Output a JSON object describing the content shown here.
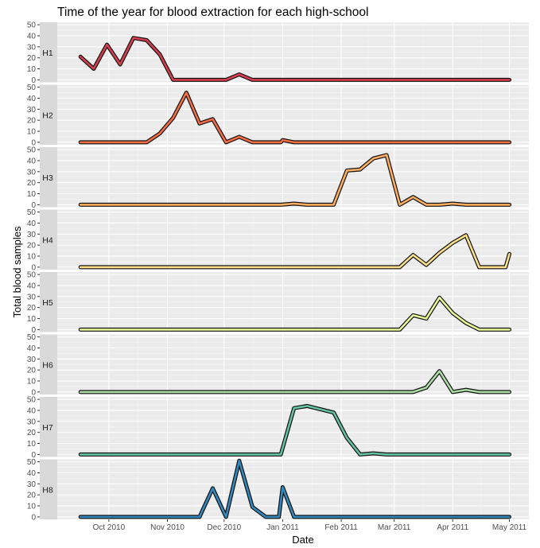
{
  "chart_data": {
    "type": "line",
    "title": "Time of the year for blood extraction for each high-school",
    "xlabel": "Date",
    "ylabel": "Total blood samples",
    "ylim": [
      0,
      50
    ],
    "yticks": [
      0,
      10,
      20,
      30,
      40,
      50
    ],
    "xlim": [
      "2010-09-14",
      "2011-05-01"
    ],
    "xticks": [
      {
        "date": "2010-10-01",
        "label": "Oct 2010"
      },
      {
        "date": "2010-11-01",
        "label": "Nov 2010"
      },
      {
        "date": "2010-12-01",
        "label": "Dec 2010"
      },
      {
        "date": "2011-01-01",
        "label": "Jan 2011"
      },
      {
        "date": "2011-02-01",
        "label": "Feb 2011"
      },
      {
        "date": "2011-03-01",
        "label": "Mar 2011"
      },
      {
        "date": "2011-04-01",
        "label": "Apr 2011"
      },
      {
        "date": "2011-05-01",
        "label": "May 2011"
      }
    ],
    "grid": true,
    "legend": "none",
    "series": [
      {
        "name": "H1",
        "color": "#d53e4f",
        "points": [
          [
            "2010-09-16",
            21
          ],
          [
            "2010-09-23",
            10
          ],
          [
            "2010-09-30",
            32
          ],
          [
            "2010-10-07",
            14
          ],
          [
            "2010-10-14",
            38
          ],
          [
            "2010-10-21",
            36
          ],
          [
            "2010-10-28",
            23
          ],
          [
            "2010-11-04",
            0
          ],
          [
            "2010-11-25",
            0
          ],
          [
            "2010-12-02",
            0
          ],
          [
            "2010-12-09",
            5
          ],
          [
            "2010-12-16",
            0
          ],
          [
            "2011-05-01",
            0
          ]
        ]
      },
      {
        "name": "H2",
        "color": "#f46d43",
        "points": [
          [
            "2010-09-16",
            0
          ],
          [
            "2010-10-21",
            0
          ],
          [
            "2010-10-28",
            8
          ],
          [
            "2010-11-04",
            22
          ],
          [
            "2010-11-11",
            45
          ],
          [
            "2010-11-18",
            17
          ],
          [
            "2010-11-25",
            21
          ],
          [
            "2010-12-02",
            0
          ],
          [
            "2010-12-09",
            5
          ],
          [
            "2010-12-16",
            0
          ],
          [
            "2010-12-31",
            0
          ],
          [
            "2011-01-01",
            2
          ],
          [
            "2011-01-07",
            0
          ],
          [
            "2011-05-01",
            0
          ]
        ]
      },
      {
        "name": "H3",
        "color": "#fdae61",
        "points": [
          [
            "2010-09-16",
            0
          ],
          [
            "2010-12-31",
            0
          ],
          [
            "2011-01-07",
            1
          ],
          [
            "2011-01-14",
            0
          ],
          [
            "2011-01-28",
            0
          ],
          [
            "2011-02-04",
            31
          ],
          [
            "2011-02-11",
            32
          ],
          [
            "2011-02-18",
            42
          ],
          [
            "2011-02-25",
            45
          ],
          [
            "2011-03-04",
            0
          ],
          [
            "2011-03-11",
            7
          ],
          [
            "2011-03-18",
            0
          ],
          [
            "2011-03-25",
            0
          ],
          [
            "2011-04-01",
            1
          ],
          [
            "2011-04-08",
            0
          ],
          [
            "2011-05-01",
            0
          ]
        ]
      },
      {
        "name": "H4",
        "color": "#fee08b",
        "points": [
          [
            "2010-09-16",
            0
          ],
          [
            "2011-03-04",
            0
          ],
          [
            "2011-03-11",
            11
          ],
          [
            "2011-03-18",
            2
          ],
          [
            "2011-03-25",
            13
          ],
          [
            "2011-04-01",
            22
          ],
          [
            "2011-04-08",
            29
          ],
          [
            "2011-04-15",
            0
          ],
          [
            "2011-04-29",
            0
          ],
          [
            "2011-05-01",
            12
          ]
        ]
      },
      {
        "name": "H5",
        "color": "#e6f598",
        "points": [
          [
            "2010-09-16",
            0
          ],
          [
            "2011-03-04",
            0
          ],
          [
            "2011-03-11",
            13
          ],
          [
            "2011-03-18",
            10
          ],
          [
            "2011-03-25",
            29
          ],
          [
            "2011-04-01",
            15
          ],
          [
            "2011-04-08",
            6
          ],
          [
            "2011-04-15",
            0
          ],
          [
            "2011-05-01",
            0
          ]
        ]
      },
      {
        "name": "H6",
        "color": "#abdda4",
        "points": [
          [
            "2010-09-16",
            0
          ],
          [
            "2011-03-11",
            0
          ],
          [
            "2011-03-18",
            4
          ],
          [
            "2011-03-25",
            19
          ],
          [
            "2011-04-01",
            0
          ],
          [
            "2011-04-08",
            2
          ],
          [
            "2011-04-15",
            0
          ],
          [
            "2011-05-01",
            0
          ]
        ]
      },
      {
        "name": "H7",
        "color": "#66c2a5",
        "points": [
          [
            "2010-09-16",
            0
          ],
          [
            "2010-12-31",
            0
          ],
          [
            "2011-01-07",
            42
          ],
          [
            "2011-01-14",
            44
          ],
          [
            "2011-01-21",
            41
          ],
          [
            "2011-01-28",
            38
          ],
          [
            "2011-02-04",
            15
          ],
          [
            "2011-02-11",
            0
          ],
          [
            "2011-02-18",
            1
          ],
          [
            "2011-02-25",
            0
          ],
          [
            "2011-05-01",
            0
          ]
        ]
      },
      {
        "name": "H8",
        "color": "#3288bd",
        "points": [
          [
            "2010-09-16",
            0
          ],
          [
            "2010-11-18",
            0
          ],
          [
            "2010-11-25",
            26
          ],
          [
            "2010-12-02",
            0
          ],
          [
            "2010-12-09",
            51
          ],
          [
            "2010-12-16",
            9
          ],
          [
            "2010-12-23",
            0
          ],
          [
            "2010-12-30",
            0
          ],
          [
            "2011-01-01",
            27
          ],
          [
            "2011-01-07",
            0
          ],
          [
            "2011-05-01",
            0
          ]
        ]
      }
    ]
  }
}
